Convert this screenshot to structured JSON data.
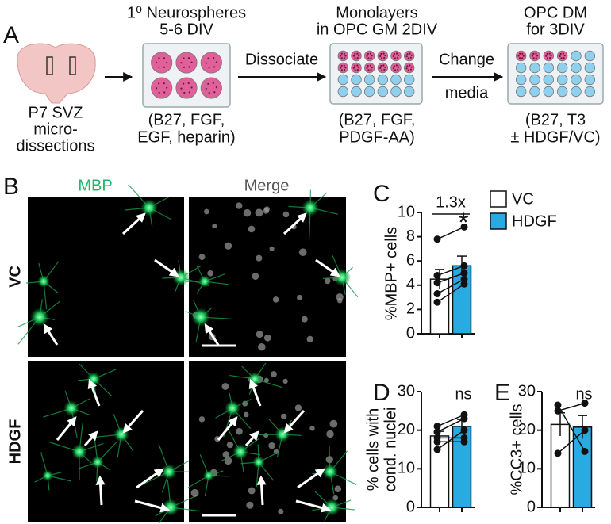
{
  "panel_a": {
    "label": "A",
    "source": [
      "P7 SVZ",
      "micro-",
      "dissections"
    ],
    "neurospheres": {
      "title": [
        "1⁰ Neurospheres",
        "5-6 DIV"
      ],
      "media": [
        "(B27, FGF,",
        "EGF, heparin)"
      ]
    },
    "dissociate": "Dissociate",
    "monolayers": {
      "title": [
        "Monolayers",
        "in OPC GM 2DIV"
      ],
      "media": [
        "(B27, FGF,",
        "PDGF-AA)"
      ]
    },
    "change": [
      "Change",
      "media"
    ],
    "differentiation": {
      "title": [
        "OPC DM",
        "for 3DIV"
      ],
      "media": [
        "(B27, T3",
        "± HDGF/VC)"
      ]
    }
  },
  "panel_b": {
    "label": "B",
    "columns": [
      "MBP",
      "Merge"
    ],
    "rows": [
      "VC",
      "HDGF"
    ]
  },
  "chart_data": [
    {
      "type": "bar",
      "panel": "C",
      "ylabel": [
        "%MBP+ cells"
      ],
      "ylim": [
        0,
        10
      ],
      "yticks": [
        0,
        2,
        4,
        6,
        8,
        10
      ],
      "annotations": [
        "1.3x",
        "*"
      ],
      "series": [
        {
          "name": "VC",
          "color": "#ffffff",
          "value": 4.5,
          "error": 0.8,
          "points": [
            7.8,
            4.8,
            4.2,
            3.3,
            2.6
          ]
        },
        {
          "name": "HDGF",
          "color": "#29abe2",
          "value": 5.6,
          "error": 0.8,
          "points": [
            8.8,
            5.6,
            5.0,
            4.5,
            4.1
          ]
        }
      ]
    },
    {
      "type": "bar",
      "panel": "D",
      "ylabel": [
        "% cells with",
        "cond. nuclei"
      ],
      "ylim": [
        0,
        30
      ],
      "yticks": [
        0,
        10,
        20,
        30
      ],
      "annotations": [
        "ns"
      ],
      "series": [
        {
          "color": "#ffffff",
          "value": 18.5,
          "error": 1.2,
          "points": [
            21,
            19.5,
            18,
            17,
            15
          ]
        },
        {
          "color": "#29abe2",
          "value": 21,
          "error": 1.8,
          "points": [
            24,
            23,
            18,
            17,
            20
          ]
        }
      ]
    },
    {
      "type": "bar",
      "panel": "E",
      "ylabel": [
        "%CC3+ cells"
      ],
      "ylim": [
        0,
        30
      ],
      "yticks": [
        0,
        10,
        20,
        30
      ],
      "annotations": [
        "ns"
      ],
      "series": [
        {
          "color": "#ffffff",
          "value": 21.5,
          "error": 3,
          "points": [
            26.5,
            25,
            14
          ]
        },
        {
          "color": "#29abe2",
          "value": 20.8,
          "error": 3,
          "points": [
            14.5,
            27,
            20
          ]
        }
      ]
    }
  ]
}
